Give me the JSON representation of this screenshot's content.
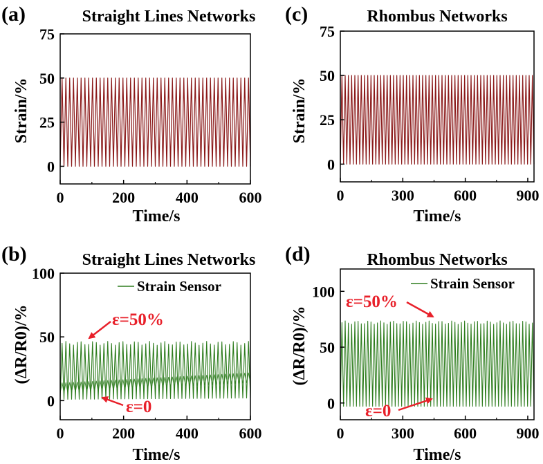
{
  "colors": {
    "strain": "#8B1A1A",
    "sensor": "#2E7D1E",
    "annotation": "#E8202A",
    "axis": "#000000"
  },
  "chart_data": [
    {
      "id": "a",
      "panel_label": "(a)",
      "type": "line",
      "title": "Straight Lines Networks",
      "xlabel": "Time/s",
      "ylabel": "Strain/%",
      "xlim": [
        0,
        600
      ],
      "ylim": [
        -10,
        75
      ],
      "xticks": [
        0,
        200,
        400,
        600
      ],
      "yticks": [
        0,
        25,
        50,
        75
      ],
      "series": [
        {
          "color": "#8B1A1A",
          "waveform": "triangle",
          "min": 0,
          "max": 50,
          "cycles": 50,
          "x_start": 0,
          "x_end": 600
        }
      ]
    },
    {
      "id": "b",
      "panel_label": "(b)",
      "type": "line",
      "title": "Straight Lines Networks",
      "xlabel": "Time/s",
      "ylabel": "(ΔR/R0)/%",
      "xlim": [
        0,
        600
      ],
      "ylim": [
        -15,
        100
      ],
      "xticks": [
        0,
        200,
        400,
        600
      ],
      "yticks": [
        0,
        50,
        100
      ],
      "legend": "Strain Sensor",
      "legend_position": "top-right",
      "series": [
        {
          "name": "Strain Sensor",
          "color": "#2E7D1E",
          "waveform": "triangle",
          "cycles": 50,
          "x_start": 0,
          "x_end": 600,
          "peak": 45,
          "trough_start": 1,
          "trough_end": 2,
          "mid_start": 10,
          "mid_end": 18
        }
      ],
      "annotations": [
        {
          "text": "ε=50%",
          "x": 90,
          "y": 45
        },
        {
          "text": "ε=0",
          "x": 130,
          "y": 1
        }
      ]
    },
    {
      "id": "c",
      "panel_label": "(c)",
      "type": "line",
      "title": "Rhombus Networks",
      "xlabel": "Time/s",
      "ylabel": "Strain/%",
      "xlim": [
        0,
        930
      ],
      "ylim": [
        -10,
        75
      ],
      "xticks": [
        0,
        300,
        600,
        900
      ],
      "yticks": [
        0,
        25,
        50,
        75
      ],
      "series": [
        {
          "color": "#8B1A1A",
          "waveform": "triangle",
          "min": 0,
          "max": 50,
          "cycles": 60,
          "x_start": 0,
          "x_end": 930
        }
      ]
    },
    {
      "id": "d",
      "panel_label": "(d)",
      "type": "line",
      "title": "Rhombus Networks",
      "xlabel": "Time/s",
      "ylabel": "(ΔR/R0)/%",
      "xlim": [
        0,
        930
      ],
      "ylim": [
        -15,
        120
      ],
      "xticks": [
        0,
        300,
        600,
        900
      ],
      "yticks": [
        0,
        50,
        100
      ],
      "legend": "Strain Sensor",
      "legend_position": "top-right",
      "series": [
        {
          "name": "Strain Sensor",
          "color": "#2E7D1E",
          "waveform": "triangle",
          "cycles": 60,
          "x_start": 0,
          "x_end": 930,
          "peak": 72,
          "trough_start": -3,
          "trough_end": -3
        }
      ],
      "annotations": [
        {
          "text": "ε=50%",
          "x": 470,
          "y": 72
        },
        {
          "text": "ε=0",
          "x": 400,
          "y": -3
        }
      ]
    }
  ]
}
